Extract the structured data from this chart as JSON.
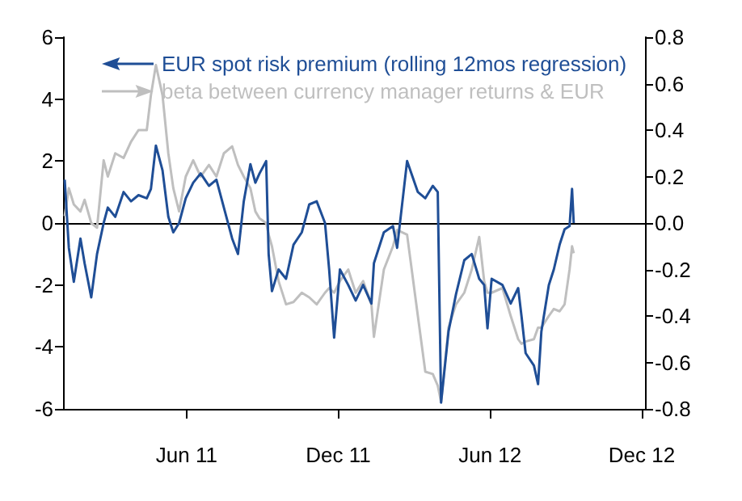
{
  "chart_data": {
    "type": "line",
    "x": [
      "2011-01-05",
      "2011-01-10",
      "2011-01-16",
      "2011-01-24",
      "2011-01-29",
      "2011-02-06",
      "2011-02-13",
      "2011-02-21",
      "2011-02-26",
      "2011-03-07",
      "2011-03-17",
      "2011-03-26",
      "2011-04-04",
      "2011-04-14",
      "2011-04-19",
      "2011-04-25",
      "2011-05-03",
      "2011-05-10",
      "2011-05-16",
      "2011-05-23",
      "2011-05-31",
      "2011-06-09",
      "2011-06-18",
      "2011-06-28",
      "2011-07-07",
      "2011-07-16",
      "2011-07-26",
      "2011-08-02",
      "2011-08-09",
      "2011-08-17",
      "2011-08-23",
      "2011-08-28",
      "2011-09-05",
      "2011-09-08",
      "2011-09-12",
      "2011-09-20",
      "2011-09-29",
      "2011-10-08",
      "2011-10-18",
      "2011-10-27",
      "2011-11-05",
      "2011-11-15",
      "2011-11-20",
      "2011-11-26",
      "2011-12-03",
      "2011-12-13",
      "2011-12-22",
      "2011-12-31",
      "2012-01-10",
      "2012-01-13",
      "2012-01-25",
      "2012-02-05",
      "2012-02-10",
      "2012-02-22",
      "2012-03-06",
      "2012-03-15",
      "2012-03-24",
      "2012-03-30",
      "2012-04-03",
      "2012-04-12",
      "2012-04-21",
      "2012-05-01",
      "2012-05-10",
      "2012-05-19",
      "2012-05-25",
      "2012-05-29",
      "2012-06-03",
      "2012-06-16",
      "2012-06-26",
      "2012-07-05",
      "2012-07-09",
      "2012-07-14",
      "2012-07-24",
      "2012-07-29",
      "2012-08-02",
      "2012-08-11",
      "2012-08-17",
      "2012-08-24",
      "2012-08-30",
      "2012-09-05",
      "2012-09-08",
      "2012-09-10"
    ],
    "series": [
      {
        "name": "EUR spot risk premium (rolling 12mos regression)",
        "color": "#1f4e96",
        "axis": "y",
        "values": [
          1.4,
          -0.8,
          -1.9,
          -0.5,
          -1.3,
          -2.4,
          -1.0,
          0,
          0.5,
          0.2,
          1.0,
          0.7,
          0.9,
          0.8,
          1.1,
          2.5,
          1.7,
          0.2,
          -0.3,
          0,
          0.8,
          1.3,
          1.6,
          1.2,
          1.4,
          0.5,
          -0.5,
          -1.0,
          0.7,
          1.9,
          1.3,
          1.6,
          2.0,
          -1.0,
          -2.2,
          -1.5,
          -1.8,
          -0.7,
          -0.3,
          0.6,
          0.7,
          0,
          -1.5,
          -3.7,
          -1.5,
          -2.0,
          -2.5,
          -2.0,
          -2.6,
          -1.3,
          -0.3,
          -0.1,
          -0.8,
          2.0,
          1.0,
          0.8,
          1.2,
          1.0,
          -5.8,
          -3.5,
          -2.3,
          -1.2,
          -1.0,
          -1.8,
          -2.0,
          -3.4,
          -1.8,
          -2.0,
          -2.6,
          -2.1,
          -3.0,
          -4.2,
          -4.6,
          -5.2,
          -3.5,
          -2.0,
          -1.5,
          -0.7,
          -0.2,
          -0.1,
          1.1,
          0
        ]
      },
      {
        "name": "beta between currency manager returns & EUR",
        "color": "#bfbfbf",
        "axis": "y2",
        "values": [
          0.03,
          0.15,
          0.08,
          0.05,
          0.1,
          0,
          -0.02,
          0.27,
          0.2,
          0.3,
          0.28,
          0.35,
          0.4,
          0.4,
          0.55,
          0.68,
          0.55,
          0.3,
          0.15,
          0.05,
          0.2,
          0.27,
          0.2,
          0.25,
          0.2,
          0.3,
          0.33,
          0.25,
          0.2,
          0.15,
          0.05,
          0.02,
          0,
          -0.05,
          -0.1,
          -0.25,
          -0.35,
          -0.34,
          -0.3,
          -0.32,
          -0.35,
          -0.3,
          -0.28,
          -0.3,
          -0.25,
          -0.2,
          -0.3,
          -0.25,
          -0.35,
          -0.49,
          -0.2,
          -0.1,
          -0.03,
          -0.05,
          -0.4,
          -0.64,
          -0.65,
          -0.7,
          -0.77,
          -0.45,
          -0.35,
          -0.3,
          -0.2,
          -0.06,
          -0.25,
          -0.3,
          -0.3,
          -0.28,
          -0.4,
          -0.5,
          -0.52,
          -0.51,
          -0.5,
          -0.45,
          -0.45,
          -0.4,
          -0.37,
          -0.38,
          -0.35,
          -0.2,
          -0.1,
          -0.13
        ]
      }
    ],
    "xlim": [
      "2011-01-03",
      "2012-12-05"
    ],
    "xticks": [
      {
        "value": "2011-06-01",
        "label": "Jun 11"
      },
      {
        "value": "2011-12-01",
        "label": "Dec 11"
      },
      {
        "value": "2012-06-01",
        "label": "Jun 12"
      },
      {
        "value": "2012-12-01",
        "label": "Dec 12"
      }
    ],
    "ylim": [
      -6,
      6
    ],
    "yticks": [
      -6,
      -4,
      -2,
      0,
      2,
      4,
      6
    ],
    "y2lim": [
      -0.8,
      0.8
    ],
    "y2ticks": [
      -0.8,
      -0.6,
      -0.4,
      -0.2,
      {
        "value": 0,
        "label": "0.0"
      },
      0.2,
      0.4,
      0.6,
      0.8
    ],
    "ref_lines": [
      {
        "axis": "y",
        "value": 0,
        "color": "#000000"
      }
    ],
    "legend": "top left"
  }
}
